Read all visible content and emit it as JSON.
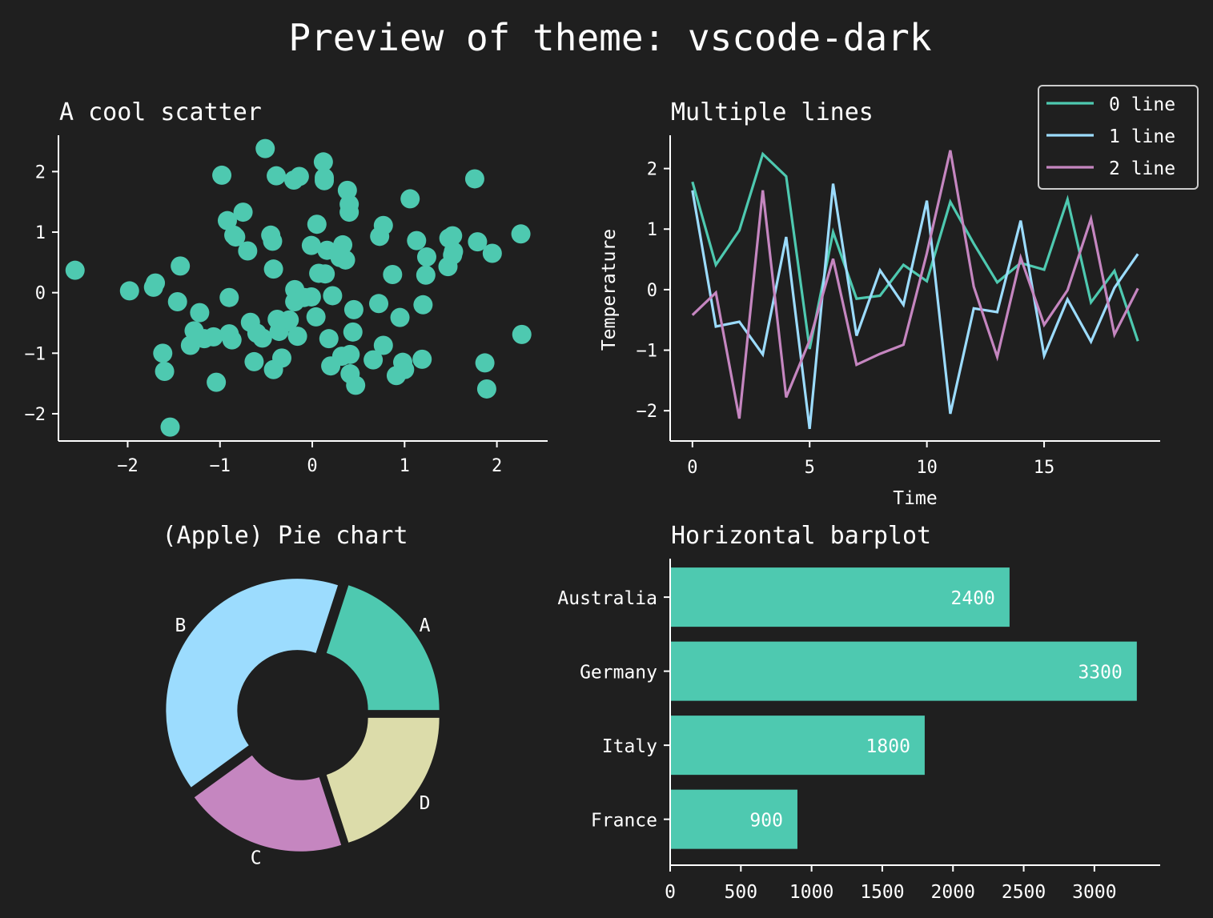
{
  "figure": {
    "title": "Preview of theme: vscode-dark",
    "background": "#1f1f1f",
    "text_color": "#ffffff"
  },
  "palette": [
    "#4ec9b0",
    "#9cdcfe",
    "#c586c0",
    "#dcdcaa"
  ],
  "chart_data": [
    {
      "type": "scatter",
      "title": "A cool scatter",
      "xlabel": "",
      "ylabel": "",
      "xlim": [
        -2.75,
        2.55
      ],
      "ylim": [
        -2.45,
        2.6
      ],
      "xticks": [
        -2,
        -1,
        0,
        1,
        2
      ],
      "yticks": [
        -2,
        -1,
        0,
        1,
        2
      ],
      "color": "#4ec9b0",
      "points": [
        [
          -2.57,
          0.37
        ],
        [
          -1.98,
          0.03
        ],
        [
          -1.72,
          0.09
        ],
        [
          -1.7,
          0.16
        ],
        [
          -1.62,
          -1.0
        ],
        [
          -1.6,
          -1.3
        ],
        [
          -1.54,
          -2.22
        ],
        [
          -1.46,
          -0.15
        ],
        [
          -1.43,
          0.44
        ],
        [
          -1.32,
          -0.87
        ],
        [
          -1.28,
          -0.63
        ],
        [
          -1.22,
          -0.33
        ],
        [
          -1.17,
          -0.76
        ],
        [
          -1.07,
          -0.73
        ],
        [
          -1.04,
          -1.48
        ],
        [
          -0.98,
          1.94
        ],
        [
          -0.92,
          1.19
        ],
        [
          -0.9,
          -0.08
        ],
        [
          -0.9,
          -0.68
        ],
        [
          -0.87,
          -0.78
        ],
        [
          -0.85,
          0.95
        ],
        [
          -0.83,
          0.92
        ],
        [
          -0.75,
          1.33
        ],
        [
          -0.7,
          0.69
        ],
        [
          -0.67,
          -0.49
        ],
        [
          -0.63,
          -1.14
        ],
        [
          -0.6,
          -0.67
        ],
        [
          -0.54,
          -0.75
        ],
        [
          -0.51,
          2.38
        ],
        [
          -0.45,
          0.95
        ],
        [
          -0.43,
          0.85
        ],
        [
          -0.42,
          0.39
        ],
        [
          -0.42,
          -1.27
        ],
        [
          -0.39,
          1.93
        ],
        [
          -0.38,
          -0.44
        ],
        [
          -0.36,
          -0.64
        ],
        [
          -0.33,
          -1.08
        ],
        [
          -0.3,
          -0.5
        ],
        [
          -0.25,
          -0.45
        ],
        [
          -0.2,
          1.86
        ],
        [
          -0.19,
          0.05
        ],
        [
          -0.19,
          -0.15
        ],
        [
          -0.16,
          -0.72
        ],
        [
          -0.14,
          1.92
        ],
        [
          -0.09,
          -0.08
        ],
        [
          -0.01,
          0.78
        ],
        [
          -0.01,
          -0.07
        ],
        [
          0.04,
          -0.4
        ],
        [
          0.05,
          1.13
        ],
        [
          0.07,
          0.32
        ],
        [
          0.12,
          2.16
        ],
        [
          0.13,
          1.85
        ],
        [
          0.13,
          1.9
        ],
        [
          0.14,
          0.31
        ],
        [
          0.16,
          0.7
        ],
        [
          0.18,
          -0.76
        ],
        [
          0.2,
          -1.21
        ],
        [
          0.22,
          -0.05
        ],
        [
          0.3,
          0.58
        ],
        [
          0.32,
          -1.05
        ],
        [
          0.33,
          0.79
        ],
        [
          0.36,
          0.54
        ],
        [
          0.38,
          1.69
        ],
        [
          0.4,
          1.46
        ],
        [
          0.4,
          1.33
        ],
        [
          0.41,
          -1.34
        ],
        [
          0.41,
          -1.02
        ],
        [
          0.44,
          -0.65
        ],
        [
          0.45,
          -0.28
        ],
        [
          0.47,
          -1.53
        ],
        [
          0.66,
          -1.11
        ],
        [
          0.72,
          -0.18
        ],
        [
          0.73,
          0.93
        ],
        [
          0.77,
          1.11
        ],
        [
          0.77,
          -0.87
        ],
        [
          0.87,
          0.3
        ],
        [
          0.91,
          -1.37
        ],
        [
          0.95,
          -0.41
        ],
        [
          0.98,
          -1.15
        ],
        [
          1.0,
          -1.27
        ],
        [
          1.06,
          1.55
        ],
        [
          1.13,
          0.86
        ],
        [
          1.19,
          -1.1
        ],
        [
          1.2,
          -0.2
        ],
        [
          1.23,
          0.29
        ],
        [
          1.24,
          0.59
        ],
        [
          1.47,
          0.43
        ],
        [
          1.48,
          0.9
        ],
        [
          1.52,
          0.94
        ],
        [
          1.52,
          0.62
        ],
        [
          1.53,
          0.68
        ],
        [
          1.76,
          1.88
        ],
        [
          1.79,
          0.84
        ],
        [
          1.87,
          -1.16
        ],
        [
          1.89,
          -1.59
        ],
        [
          1.95,
          0.65
        ],
        [
          2.26,
          0.97
        ],
        [
          2.27,
          -0.69
        ]
      ]
    },
    {
      "type": "line",
      "title": "Multiple lines",
      "xlabel": "Time",
      "ylabel": "Temperature",
      "xlim": [
        -0.95,
        19.95
      ],
      "ylim": [
        -2.5,
        2.55
      ],
      "xticks": [
        0,
        5,
        10,
        15
      ],
      "yticks": [
        -2,
        -1,
        0,
        1,
        2
      ],
      "legend": "top-right",
      "x": [
        0,
        1,
        2,
        3,
        4,
        5,
        6,
        7,
        8,
        9,
        10,
        11,
        12,
        13,
        14,
        15,
        16,
        17,
        18,
        19
      ],
      "series": [
        {
          "name": "0 line",
          "color": "#4ec9b0",
          "values": [
            1.78,
            0.41,
            0.98,
            2.24,
            1.87,
            -0.98,
            0.95,
            -0.15,
            -0.1,
            0.41,
            0.14,
            1.45,
            0.76,
            0.12,
            0.44,
            0.33,
            1.49,
            -0.21,
            0.31,
            -0.85
          ]
        },
        {
          "name": "1 line",
          "color": "#9cdcfe",
          "values": [
            1.64,
            -0.61,
            -0.53,
            -1.07,
            0.87,
            -2.3,
            1.75,
            -0.76,
            0.32,
            -0.25,
            1.47,
            -2.05,
            -0.31,
            -0.37,
            1.14,
            -1.09,
            -0.16,
            -0.86,
            0.03,
            0.59
          ]
        },
        {
          "name": "2 line",
          "color": "#c586c0",
          "values": [
            -0.42,
            -0.05,
            -2.13,
            1.64,
            -1.78,
            -0.84,
            0.51,
            -1.24,
            -1.06,
            -0.91,
            0.6,
            2.3,
            0.05,
            -1.11,
            0.53,
            -0.58,
            -0.01,
            1.17,
            -0.74,
            0.02
          ]
        }
      ]
    },
    {
      "type": "pie",
      "title": "(Apple) Pie chart",
      "donut": true,
      "labels": [
        "A",
        "B",
        "C",
        "D"
      ],
      "values": [
        20,
        40,
        20,
        20
      ],
      "explode": [
        0.05,
        0.05,
        0.05,
        0.05
      ],
      "colors": [
        "#4ec9b0",
        "#9cdcfe",
        "#c586c0",
        "#dcdcaa"
      ]
    },
    {
      "type": "bar",
      "orientation": "horizontal",
      "title": "Horizontal barplot",
      "xlabel": "",
      "ylabel": "",
      "categories": [
        "France",
        "Italy",
        "Germany",
        "Australia"
      ],
      "values": [
        900,
        1800,
        3300,
        2400
      ],
      "xlim": [
        0,
        3465
      ],
      "xticks": [
        0,
        500,
        1000,
        1500,
        2000,
        2500,
        3000
      ],
      "color": "#4ec9b0"
    }
  ]
}
